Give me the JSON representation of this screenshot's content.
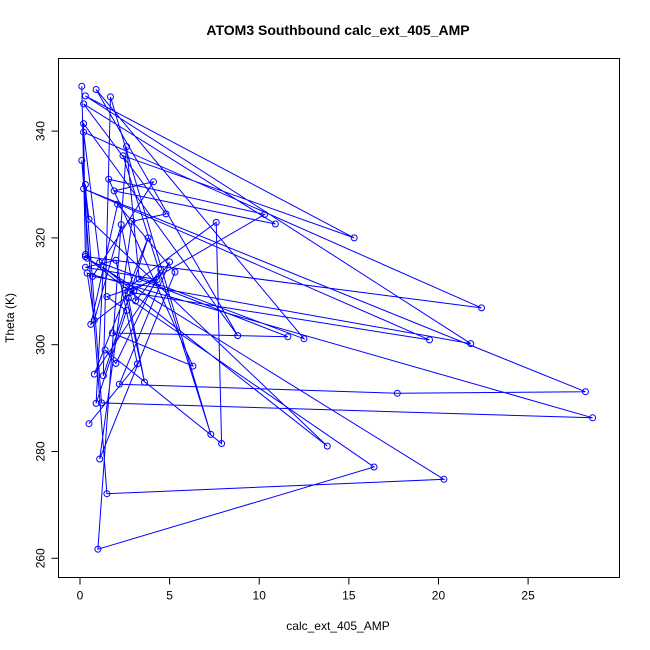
{
  "chart_data": {
    "type": "line",
    "title": "ATOM3 Southbound calc_ext_405_AMP",
    "xlabel": "calc_ext_405_AMP",
    "ylabel": "Theta (K)",
    "xlim": [
      -1.2,
      30.1
    ],
    "ylim": [
      256.4,
      353.6
    ],
    "xticks": [
      0,
      5,
      10,
      15,
      20,
      25
    ],
    "yticks": [
      260,
      280,
      300,
      320,
      340
    ],
    "grid": false,
    "legend": "none",
    "marker": "open-circle",
    "color": "#0000ff",
    "series": [
      {
        "x": [
          0.1,
          0.3,
          0.2,
          8.8,
          0.9,
          12.5,
          1.1,
          0.2,
          22.4,
          0.3,
          13.8,
          0.5,
          0.1,
          1.5,
          20.3,
          0.4,
          0.3,
          1.2,
          28.6,
          0.4,
          0.8,
          2.3,
          3.1,
          4.5,
          2.0,
          1.4,
          7.9,
          7.6,
          2.5,
          3.6,
          2.7,
          16.4,
          1.0,
          2.6,
          3.3,
          11.6,
          1.8,
          6.3,
          1.6,
          10.3,
          2.8,
          19.5,
          0.2,
          28.2,
          17.7,
          2.2,
          5.0,
          0.8,
          3.8,
          1.3,
          1.7,
          7.3,
          2.4,
          15.3,
          0.3,
          21.8,
          0.7,
          4.1,
          1.9,
          10.9,
          0.2,
          4.8,
          2.9,
          1.1,
          5.3,
          2.1,
          0.6,
          3.0,
          1.3,
          0.9,
          2.6,
          1.5,
          4.3,
          0.3,
          2.0,
          3.2,
          0.5
        ],
        "y": [
          348.4,
          316.9,
          341.4,
          301.7,
          347.8,
          301.1,
          315.4,
          339.8,
          306.9,
          316.5,
          281.0,
          323.5,
          334.5,
          272.1,
          274.8,
          316.2,
          330.0,
          289.1,
          286.3,
          313.4,
          304.6,
          322.5,
          308.2,
          314.0,
          296.5,
          299.0,
          281.5,
          322.9,
          310.2,
          293.0,
          308.7,
          277.1,
          261.7,
          337.1,
          312.3,
          301.5,
          302.2,
          296.0,
          331.0,
          324.4,
          309.8,
          300.9,
          329.2,
          291.2,
          290.9,
          292.6,
          315.5,
          294.5,
          320.0,
          294.2,
          346.4,
          283.2,
          335.4,
          320.0,
          346.6,
          300.2,
          312.8,
          330.5,
          328.8,
          322.6,
          345.1,
          324.5,
          323.1,
          278.6,
          313.6,
          326.3,
          303.8,
          310.0,
          314.5,
          289.0,
          306.4,
          309.0,
          312.2,
          314.5,
          315.8,
          296.4,
          285.2
        ]
      }
    ]
  }
}
